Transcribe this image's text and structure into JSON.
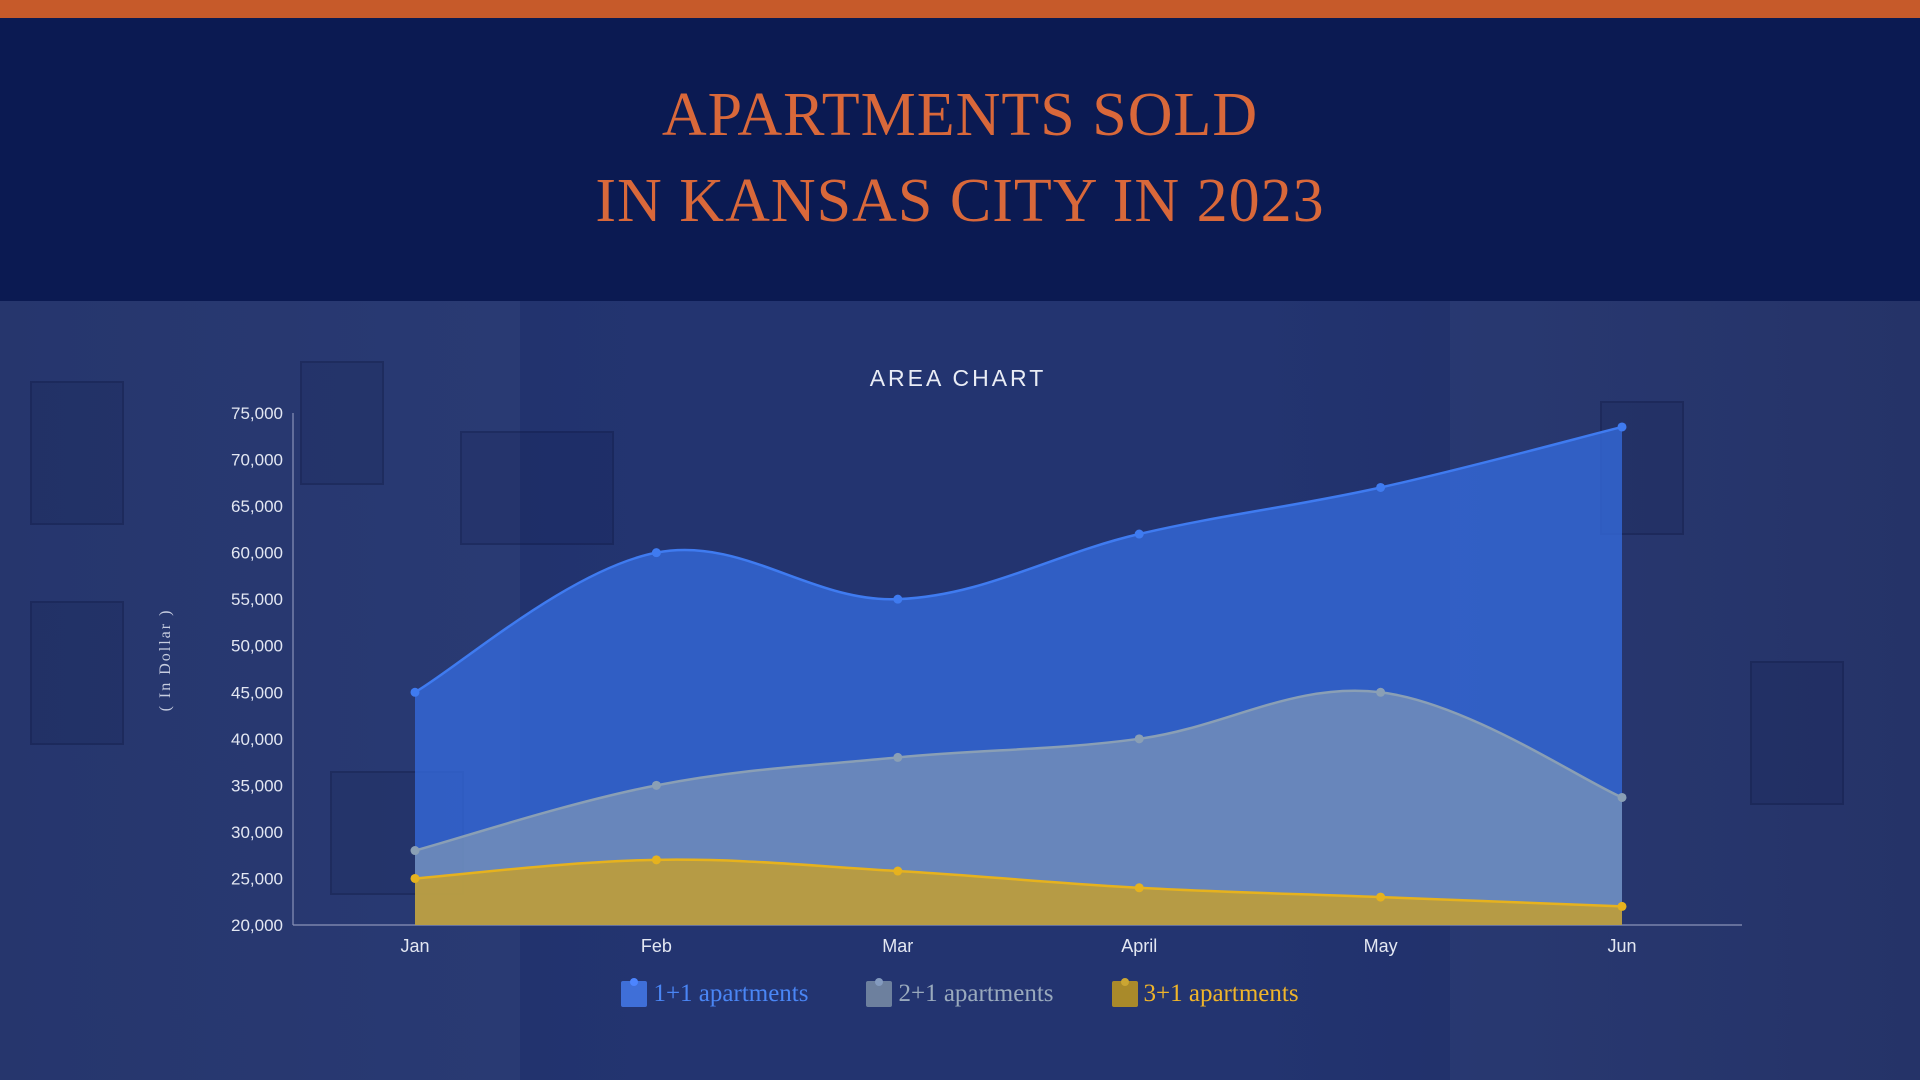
{
  "header": {
    "title_line1": "APARTMENTS SOLD",
    "title_line2": "IN KANSAS CITY IN 2023"
  },
  "colors": {
    "accent_orange": "#c65a2a",
    "title_orange": "#d9683a",
    "header_navy": "#0b1a52",
    "series_1": "#3f7bf0",
    "series_2": "#8a9fb5",
    "series_3": "#e6b21e"
  },
  "chart_data": {
    "type": "area",
    "title": "AREA CHART",
    "ylabel": "( In Dollar )",
    "xlabel": "",
    "categories": [
      "Jan",
      "Feb",
      "Mar",
      "April",
      "May",
      "Jun"
    ],
    "ylim": [
      20000,
      75000
    ],
    "yticks": [
      "20,000",
      "25,000",
      "30,000",
      "35,000",
      "40,000",
      "45,000",
      "50,000",
      "55,000",
      "60,000",
      "65,000",
      "70,000",
      "75,000"
    ],
    "series": [
      {
        "name": "1+1 apartments",
        "color": "#3f7bf0",
        "values": [
          45000,
          60000,
          55000,
          62000,
          67000,
          73500
        ]
      },
      {
        "name": "2+1 apartments",
        "color": "#8a9fb5",
        "values": [
          28000,
          35000,
          38000,
          40000,
          45000,
          33700
        ]
      },
      {
        "name": "3+1 apartments",
        "color": "#e6b21e",
        "values": [
          25000,
          27000,
          25800,
          24000,
          23000,
          22000
        ]
      }
    ],
    "grid": false,
    "legend_position": "bottom-center"
  }
}
